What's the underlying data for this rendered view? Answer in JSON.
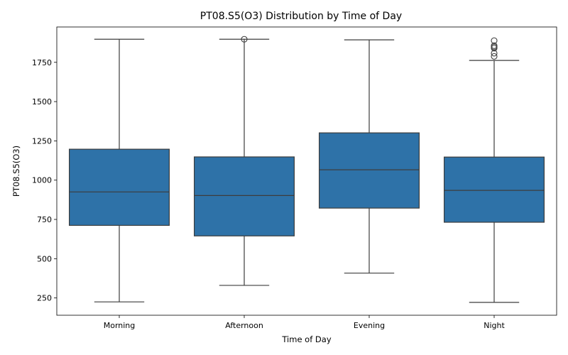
{
  "chart_data": {
    "type": "box",
    "title": "PT08.S5(O3) Distribution by Time of Day",
    "xlabel": "Time of Day",
    "ylabel": "PT08.S5(O3)",
    "categories": [
      "Morning",
      "Afternoon",
      "Evening",
      "Night"
    ],
    "ylim": [
      140,
      1975
    ],
    "yticks": [
      250,
      500,
      750,
      1000,
      1250,
      1500,
      1750
    ],
    "ytick_labels": [
      "250",
      "500",
      "750",
      "1000",
      "1250",
      "1500",
      "1750"
    ],
    "grid": false,
    "box_color": "#2e72a8",
    "boxes": [
      {
        "category": "Morning",
        "whisker_low": 225,
        "q1": 712,
        "median": 925,
        "q3": 1197,
        "whisker_high": 1897,
        "fliers": []
      },
      {
        "category": "Afternoon",
        "whisker_low": 330,
        "q1": 645,
        "median": 902,
        "q3": 1148,
        "whisker_high": 1897,
        "fliers": [
          1897
        ]
      },
      {
        "category": "Evening",
        "whisker_low": 408,
        "q1": 822,
        "median": 1066,
        "q3": 1301,
        "whisker_high": 1893,
        "fliers": []
      },
      {
        "category": "Night",
        "whisker_low": 222,
        "q1": 732,
        "median": 935,
        "q3": 1147,
        "whisker_high": 1762,
        "fliers": [
          1788,
          1808,
          1840,
          1848,
          1856,
          1888
        ]
      }
    ]
  }
}
